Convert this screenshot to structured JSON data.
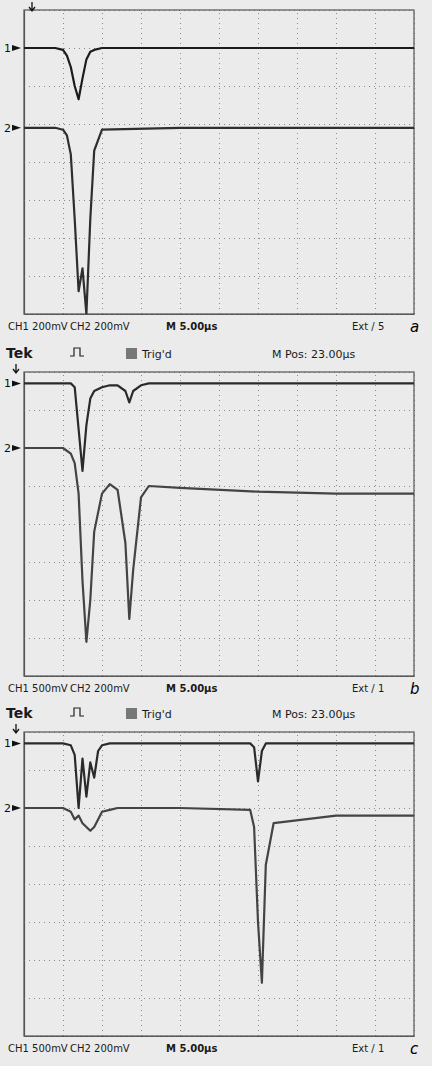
{
  "chart_data": [
    {
      "type": "line",
      "title": "a",
      "header": [],
      "footer": [
        "CH1 200mV",
        "CH2 200mV",
        "M 5.00µs",
        "Ext / 5"
      ],
      "x": [
        0,
        4,
        5,
        5.5,
        6,
        6.5,
        7,
        7.5,
        8,
        8.5,
        9,
        10,
        20,
        30,
        40,
        50
      ],
      "series": [
        {
          "name": "1",
          "color": "#1c1c1c",
          "values": [
            3.0,
            3.0,
            2.95,
            2.8,
            2.5,
            2.0,
            1.65,
            2.2,
            2.7,
            2.9,
            2.95,
            3.0,
            3.0,
            3.0,
            3.0,
            3.0
          ]
        },
        {
          "name": "2",
          "color": "#2e2e2e",
          "values": [
            0.9,
            0.9,
            0.85,
            0.7,
            0.2,
            -1.5,
            -3.4,
            -2.8,
            -4.0,
            -1.5,
            0.3,
            0.85,
            0.9,
            0.9,
            0.9,
            0.9
          ]
        }
      ],
      "xlim": [
        0,
        50
      ],
      "ylim": [
        -4,
        4
      ],
      "xticks": [
        0,
        5,
        10,
        15,
        20,
        25,
        30,
        35,
        40,
        45,
        50
      ],
      "yticks": [
        -4,
        -3,
        -2,
        -1,
        0,
        1,
        2,
        3,
        4
      ],
      "grid": true,
      "tick_labels": false
    },
    {
      "type": "line",
      "title": "b",
      "header": [
        "Tek",
        "Trig'd",
        "M Pos: 23.00µs"
      ],
      "footer": [
        "CH1 500mV",
        "CH2 200mV",
        "M 5.00µs",
        "Ext / 1"
      ],
      "x": [
        0,
        5,
        6,
        6.5,
        7,
        7.5,
        8,
        8.5,
        9,
        10,
        11,
        12,
        13,
        13.5,
        14,
        15,
        16,
        20,
        30,
        40,
        50
      ],
      "series": [
        {
          "name": "1",
          "color": "#2a2a2a",
          "values": [
            3.7,
            3.7,
            3.7,
            3.6,
            2.5,
            1.4,
            2.6,
            3.3,
            3.5,
            3.6,
            3.65,
            3.65,
            3.5,
            3.2,
            3.5,
            3.65,
            3.7,
            3.7,
            3.7,
            3.7,
            3.7
          ]
        },
        {
          "name": "2",
          "color": "#444444",
          "values": [
            2.0,
            2.0,
            1.85,
            1.6,
            0.8,
            -1.5,
            -3.1,
            -2.0,
            -0.2,
            0.8,
            1.05,
            0.9,
            -0.5,
            -2.5,
            -1.2,
            0.7,
            1.0,
            0.95,
            0.85,
            0.8,
            0.8
          ]
        }
      ],
      "xlim": [
        0,
        50
      ],
      "ylim": [
        -4,
        4
      ],
      "xticks": [
        0,
        5,
        10,
        15,
        20,
        25,
        30,
        35,
        40,
        45,
        50
      ],
      "yticks": [
        -4,
        -3,
        -2,
        -1,
        0,
        1,
        2,
        3,
        4
      ],
      "grid": true,
      "tick_labels": false
    },
    {
      "type": "line",
      "title": "c",
      "header": [
        "Tek",
        "Trig'd",
        "M Pos: 23.00µs"
      ],
      "footer": [
        "CH1 500mV",
        "CH2 200mV",
        "M 5.00µs",
        "Ext / 1"
      ],
      "x": [
        0,
        5,
        6,
        6.5,
        7,
        7.5,
        8,
        8.5,
        9,
        9.5,
        10,
        11,
        12,
        20,
        29,
        29.5,
        30,
        30.5,
        31,
        32,
        40,
        50
      ],
      "series": [
        {
          "name": "1",
          "color": "#2a2a2a",
          "values": [
            3.7,
            3.7,
            3.65,
            3.4,
            2.0,
            3.3,
            2.3,
            3.2,
            2.8,
            3.5,
            3.65,
            3.7,
            3.7,
            3.7,
            3.7,
            3.6,
            2.7,
            3.5,
            3.7,
            3.7,
            3.7,
            3.7
          ]
        },
        {
          "name": "2",
          "color": "#444444",
          "values": [
            2.0,
            2.0,
            1.9,
            1.7,
            1.8,
            1.6,
            1.5,
            1.4,
            1.5,
            1.7,
            1.9,
            1.95,
            2.0,
            2.0,
            1.95,
            1.5,
            -1.0,
            -2.6,
            0.5,
            1.6,
            1.8,
            1.8
          ]
        }
      ],
      "xlim": [
        0,
        50
      ],
      "ylim": [
        -4,
        4
      ],
      "xticks": [
        0,
        5,
        10,
        15,
        20,
        25,
        30,
        35,
        40,
        45,
        50
      ],
      "yticks": [
        -4,
        -3,
        -2,
        -1,
        0,
        1,
        2,
        3,
        4
      ],
      "grid": true,
      "tick_labels": false
    }
  ]
}
